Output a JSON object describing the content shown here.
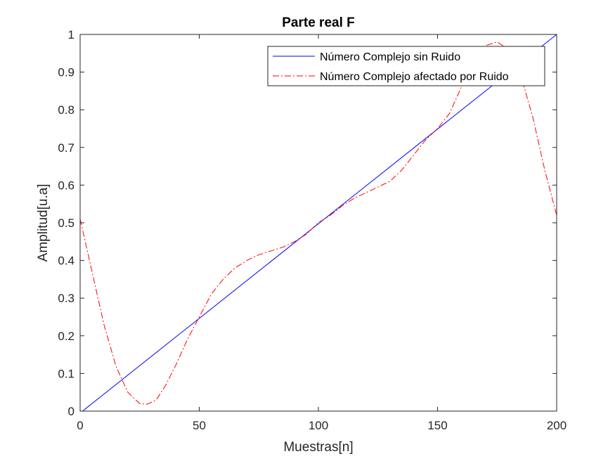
{
  "chart_data": {
    "type": "line",
    "title": "Parte real F",
    "xlabel": "Muestras[n]",
    "ylabel": "Amplitud[u.a]",
    "xlim": [
      0,
      200
    ],
    "ylim": [
      0,
      1
    ],
    "x_ticks": [
      "0",
      "50",
      "100",
      "150",
      "200"
    ],
    "y_ticks": [
      "0",
      "0.1",
      "0.2",
      "0.3",
      "0.4",
      "0.5",
      "0.6",
      "0.7",
      "0.8",
      "0.9",
      "1"
    ],
    "grid": false,
    "legend_position": "top-right",
    "series": [
      {
        "name": "Número Complejo sin Ruido",
        "color": "#0000ff",
        "style": "solid",
        "x": [
          1,
          200
        ],
        "y": [
          0,
          1
        ]
      },
      {
        "name": "Número Complejo afectado por Ruido",
        "color": "#ff0000",
        "style": "dashdot",
        "x": [
          0,
          5,
          10,
          15,
          20,
          25,
          28,
          32,
          36,
          40,
          45,
          50,
          55,
          60,
          65,
          70,
          75,
          80,
          85,
          90,
          95,
          100,
          105,
          110,
          115,
          120,
          125,
          130,
          135,
          140,
          145,
          150,
          155,
          160,
          165,
          170,
          175,
          180,
          185,
          190,
          195,
          200
        ],
        "y": [
          0.51,
          0.37,
          0.23,
          0.12,
          0.05,
          0.02,
          0.018,
          0.03,
          0.07,
          0.12,
          0.19,
          0.25,
          0.31,
          0.35,
          0.38,
          0.4,
          0.415,
          0.425,
          0.435,
          0.45,
          0.47,
          0.5,
          0.52,
          0.545,
          0.565,
          0.58,
          0.595,
          0.61,
          0.64,
          0.68,
          0.72,
          0.75,
          0.79,
          0.86,
          0.93,
          0.97,
          0.98,
          0.96,
          0.89,
          0.78,
          0.64,
          0.52
        ]
      }
    ]
  }
}
